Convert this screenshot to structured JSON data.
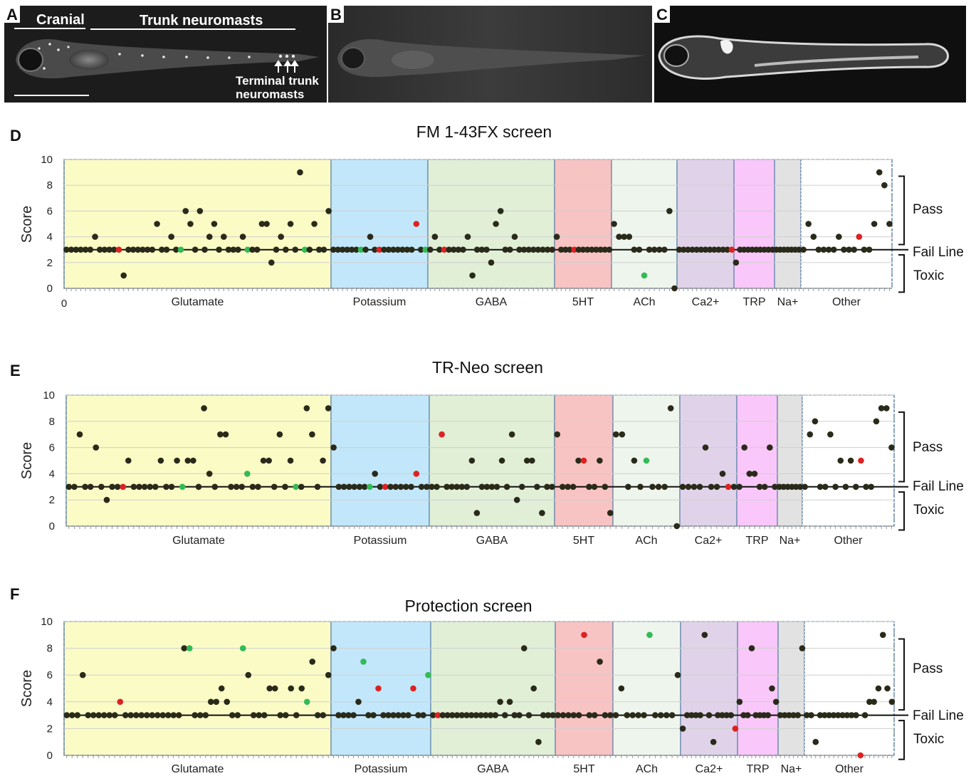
{
  "images": [
    {
      "letter": "A",
      "cranial_label": "Cranial",
      "trunk_label": "Trunk neuromasts",
      "annotation_line1": "Terminal trunk",
      "annotation_line2": "neuromasts"
    },
    {
      "letter": "B"
    },
    {
      "letter": "C"
    }
  ],
  "colors": {
    "point": "#2a2a1a",
    "point_red": "#dd2222",
    "point_green": "#33bb55",
    "baseline": "#111111",
    "grid": "#cfcfcf"
  },
  "chart_data": [
    {
      "letter": "D",
      "type": "scatter",
      "title": "FM 1-43FX screen",
      "ylabel": "Score",
      "ylim": [
        0,
        10
      ],
      "yticks": [
        "0",
        "2",
        "4",
        "6",
        "8",
        "10"
      ],
      "x_start_label": "0",
      "fail_line": 3,
      "side_labels": {
        "pass": "Pass",
        "fail": "Fail Line",
        "toxic": "Toxic"
      },
      "categories": [
        {
          "name": "Glutamate",
          "color": "#fbfbc6",
          "values": [
            3,
            3,
            3,
            3,
            3,
            3,
            4,
            3,
            3,
            3,
            3,
            3,
            1,
            3,
            3,
            3,
            3,
            3,
            3,
            5,
            3,
            3,
            4,
            3,
            3,
            6,
            5,
            3,
            6,
            3,
            4,
            5,
            3,
            4,
            3,
            3,
            3,
            4,
            3,
            3,
            3,
            5,
            5,
            2,
            3,
            4,
            3,
            5,
            3,
            9,
            3,
            3,
            5,
            3,
            3,
            6
          ],
          "highlights": {
            "11": "red",
            "24": "green",
            "38": "green",
            "50": "green"
          }
        },
        {
          "name": "Potassium",
          "color": "#c2e7fa",
          "values": [
            3,
            3,
            3,
            3,
            3,
            3,
            3,
            3,
            4,
            3,
            3,
            3,
            3,
            3,
            3,
            3,
            3,
            3,
            5,
            3,
            3
          ],
          "highlights": {
            "6": "green",
            "10": "red",
            "18": "red",
            "20": "green"
          }
        },
        {
          "name": "GABA",
          "color": "#e0efd6",
          "values": [
            3,
            4,
            3,
            3,
            3,
            3,
            3,
            3,
            4,
            1,
            3,
            3,
            3,
            2,
            5,
            6,
            3,
            3,
            4,
            3,
            3,
            3,
            3,
            3,
            3,
            3,
            3
          ],
          "highlights": {
            "3": "red"
          }
        },
        {
          "name": "5HT",
          "color": "#f8c3c3",
          "values": [
            4,
            3,
            3,
            3,
            3,
            3,
            3,
            3,
            3,
            3,
            3,
            3,
            3
          ],
          "highlights": {
            "4": "red"
          }
        },
        {
          "name": "ACh",
          "color": "#eef5ec",
          "values": [
            5,
            4,
            4,
            4,
            3,
            3,
            1,
            3,
            3,
            3,
            3,
            6,
            0
          ],
          "highlights": {
            "6": "green"
          }
        },
        {
          "name": "Ca2+",
          "color": "#e0d3e9",
          "values": [
            3,
            3,
            3,
            3,
            3,
            3,
            3,
            3,
            3,
            3,
            3,
            3,
            3
          ],
          "highlights": {
            "12": "red"
          }
        },
        {
          "name": "TRP",
          "color": "#f9c7f9",
          "values": [
            2,
            3,
            3,
            3,
            3,
            3,
            3,
            3,
            3,
            3
          ],
          "highlights": {}
        },
        {
          "name": "Na+",
          "color": "#e2e2e2",
          "values": [
            3,
            3,
            3,
            3,
            3,
            3,
            3
          ],
          "highlights": {}
        },
        {
          "name": "Other",
          "color": "#ffffff",
          "values": [
            3,
            5,
            4,
            3,
            3,
            3,
            3,
            4,
            3,
            3,
            3,
            4,
            3,
            3,
            5,
            9,
            8,
            5
          ],
          "highlights": {
            "11": "red"
          }
        }
      ]
    },
    {
      "letter": "E",
      "type": "scatter",
      "title": "TR-Neo screen",
      "ylabel": "Score",
      "ylim": [
        0,
        10
      ],
      "yticks": [
        "0",
        "2",
        "4",
        "6",
        "8",
        "10"
      ],
      "x_start_label": "",
      "fail_line": 3,
      "side_labels": {
        "pass": "Pass",
        "fail": "Fail Line",
        "toxic": "Toxic"
      },
      "categories": [
        {
          "name": "Glutamate",
          "color": "#fbfbc6",
          "values": [
            3,
            3,
            7,
            3,
            3,
            6,
            3,
            2,
            3,
            3,
            3,
            5,
            3,
            3,
            3,
            3,
            3,
            5,
            3,
            3,
            5,
            3,
            5,
            5,
            3,
            9,
            4,
            3,
            7,
            7,
            3,
            3,
            3,
            4,
            3,
            3,
            5,
            5,
            3,
            7,
            3,
            5,
            3,
            3,
            9,
            7,
            3,
            5,
            9
          ],
          "highlights": {
            "10": "red",
            "21": "green",
            "33": "green",
            "42": "green"
          }
        },
        {
          "name": "Potassium",
          "color": "#c2e7fa",
          "values": [
            6,
            3,
            3,
            3,
            3,
            3,
            3,
            3,
            4,
            3,
            3,
            3,
            3,
            3,
            3,
            3,
            4,
            3,
            3
          ],
          "highlights": {
            "7": "green",
            "10": "red",
            "16": "red"
          }
        },
        {
          "name": "GABA",
          "color": "#e0efd6",
          "values": [
            3,
            3,
            7,
            3,
            3,
            3,
            3,
            3,
            5,
            1,
            3,
            3,
            3,
            3,
            5,
            3,
            7,
            2,
            3,
            5,
            5,
            3,
            1,
            3,
            3
          ],
          "highlights": {
            "2": "red"
          }
        },
        {
          "name": "5HT",
          "color": "#f8c3c3",
          "values": [
            7,
            3,
            3,
            3,
            5,
            5,
            3,
            3,
            5,
            3,
            1
          ],
          "highlights": {
            "5": "red"
          }
        },
        {
          "name": "ACh",
          "color": "#eef5ec",
          "values": [
            7,
            7,
            3,
            5,
            3,
            5,
            3,
            3,
            3,
            9,
            0
          ],
          "highlights": {
            "5": "green"
          }
        },
        {
          "name": "Ca2+",
          "color": "#e0d3e9",
          "values": [
            3,
            3,
            3,
            3,
            6,
            3,
            3,
            4,
            3,
            3
          ],
          "highlights": {
            "8": "red"
          }
        },
        {
          "name": "TRP",
          "color": "#f9c7f9",
          "values": [
            3,
            6,
            4,
            4,
            3,
            3,
            6,
            3
          ],
          "highlights": {}
        },
        {
          "name": "Na+",
          "color": "#e2e2e2",
          "values": [
            3,
            3,
            3,
            3,
            3,
            3
          ],
          "highlights": {}
        },
        {
          "name": "Other",
          "color": "#ffffff",
          "values": [
            3,
            7,
            8,
            3,
            3,
            7,
            3,
            5,
            3,
            5,
            3,
            5,
            3,
            3,
            8,
            9,
            9,
            6
          ],
          "highlights": {
            "11": "red"
          }
        }
      ]
    },
    {
      "letter": "F",
      "type": "scatter",
      "title": "Protection screen",
      "ylabel": "Score",
      "ylim": [
        0,
        10
      ],
      "yticks": [
        "0",
        "2",
        "4",
        "6",
        "8",
        "10"
      ],
      "x_start_label": "",
      "fail_line": 3,
      "side_labels": {
        "pass": "Pass",
        "fail": "Fail Line",
        "toxic": "Toxic"
      },
      "categories": [
        {
          "name": "Glutamate",
          "color": "#fbfbc6",
          "values": [
            3,
            3,
            3,
            6,
            3,
            3,
            3,
            3,
            3,
            3,
            4,
            3,
            3,
            3,
            3,
            3,
            3,
            3,
            3,
            3,
            3,
            3,
            8,
            8,
            3,
            3,
            3,
            4,
            4,
            5,
            4,
            3,
            3,
            8,
            6,
            3,
            3,
            3,
            5,
            5,
            3,
            3,
            5,
            3,
            5,
            4,
            7,
            3,
            3,
            6
          ],
          "highlights": {
            "10": "red",
            "23": "green",
            "33": "green",
            "45": "green"
          }
        },
        {
          "name": "Potassium",
          "color": "#c2e7fa",
          "values": [
            8,
            3,
            3,
            3,
            3,
            4,
            7,
            3,
            3,
            5,
            3,
            3,
            3,
            3,
            3,
            3,
            5,
            3,
            3,
            6
          ],
          "highlights": {
            "6": "green",
            "9": "red",
            "16": "red",
            "19": "green"
          }
        },
        {
          "name": "GABA",
          "color": "#e0efd6",
          "values": [
            3,
            3,
            3,
            3,
            3,
            3,
            3,
            3,
            3,
            3,
            3,
            3,
            3,
            3,
            4,
            3,
            4,
            3,
            3,
            8,
            3,
            5,
            1,
            3,
            3,
            3
          ],
          "highlights": {
            "1": "red"
          }
        },
        {
          "name": "5HT",
          "color": "#f8c3c3",
          "values": [
            3,
            3,
            3,
            3,
            3,
            9,
            3,
            3,
            7,
            3,
            3
          ],
          "highlights": {
            "5": "red"
          }
        },
        {
          "name": "ACh",
          "color": "#eef5ec",
          "values": [
            3,
            5,
            3,
            3,
            3,
            3,
            9,
            3,
            3,
            3,
            3,
            6
          ],
          "highlights": {
            "6": "green"
          }
        },
        {
          "name": "Ca2+",
          "color": "#e0d3e9",
          "values": [
            2,
            3,
            3,
            3,
            3,
            9,
            3,
            1,
            3,
            3,
            3,
            3,
            2
          ],
          "highlights": {
            "12": "red"
          }
        },
        {
          "name": "TRP",
          "color": "#f9c7f9",
          "values": [
            4,
            3,
            3,
            8,
            3,
            3,
            3,
            3,
            5,
            4
          ],
          "highlights": {}
        },
        {
          "name": "Na+",
          "color": "#e2e2e2",
          "values": [
            3,
            3,
            3,
            3,
            3,
            8
          ],
          "highlights": {}
        },
        {
          "name": "Other",
          "color": "#ffffff",
          "values": [
            3,
            3,
            1,
            3,
            3,
            3,
            3,
            3,
            3,
            3,
            3,
            3,
            0,
            3,
            4,
            4,
            5,
            9,
            5,
            4
          ],
          "highlights": {
            "12": "red"
          }
        }
      ]
    }
  ]
}
